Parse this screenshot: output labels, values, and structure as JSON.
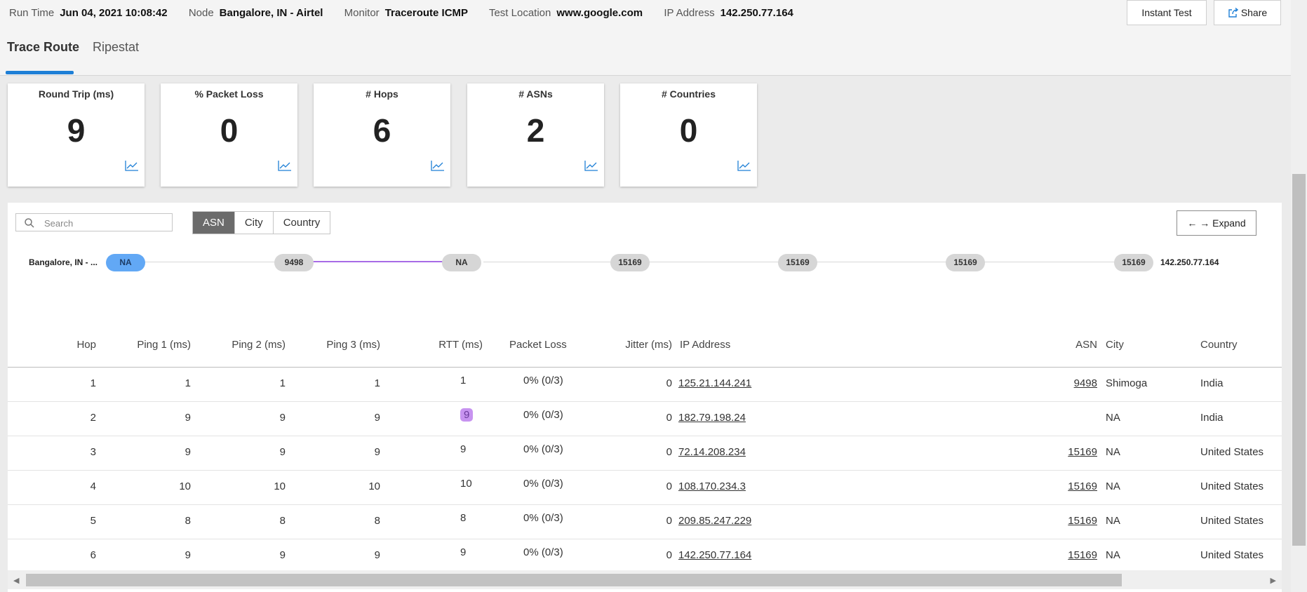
{
  "meta": {
    "run_time_label": "Run Time",
    "run_time": "Jun 04, 2021 10:08:42",
    "node_label": "Node",
    "node": "Bangalore, IN - Airtel",
    "monitor_label": "Monitor",
    "monitor": "Traceroute ICMP",
    "location_label": "Test Location",
    "location": "www.google.com",
    "ip_label": "IP Address",
    "ip": "142.250.77.164"
  },
  "buttons": {
    "instant_test": "Instant Test",
    "share": "Share",
    "expand": "← → Expand"
  },
  "tabs": [
    {
      "label": "Trace Route",
      "active": true
    },
    {
      "label": "Ripestat",
      "active": false
    }
  ],
  "cards": [
    {
      "title": "Round Trip (ms)",
      "value": "9"
    },
    {
      "title": "% Packet Loss",
      "value": "0"
    },
    {
      "title": "# Hops",
      "value": "6"
    },
    {
      "title": "# ASNs",
      "value": "2"
    },
    {
      "title": "# Countries",
      "value": "0"
    }
  ],
  "search": {
    "placeholder": "Search",
    "value": ""
  },
  "segments": [
    {
      "label": "ASN",
      "active": true
    },
    {
      "label": "City"
    },
    {
      "label": "Country"
    }
  ],
  "path": {
    "source": "Bangalore, IN - ...",
    "destination": "142.250.77.164",
    "nodes": [
      "NA",
      "9498",
      "NA",
      "15169",
      "15169",
      "15169",
      "15169"
    ]
  },
  "table": {
    "headers": [
      "Hop",
      "Ping 1 (ms)",
      "Ping 2 (ms)",
      "Ping 3 (ms)",
      "RTT (ms)",
      "Packet Loss",
      "Jitter (ms)",
      "IP Address",
      "ASN",
      "City",
      "Country"
    ],
    "rows": [
      {
        "hop": "1",
        "p1": "1",
        "p2": "1",
        "p3": "1",
        "rtt": "1",
        "loss": "0% (0/3)",
        "jitter": "0",
        "ip": "125.21.144.241",
        "asn": "9498",
        "city": "Shimoga",
        "country": "India"
      },
      {
        "hop": "2",
        "p1": "9",
        "p2": "9",
        "p3": "9",
        "rtt": "9",
        "loss": "0% (0/3)",
        "jitter": "0",
        "ip": "182.79.198.24",
        "asn": "",
        "city": "NA",
        "country": "India"
      },
      {
        "hop": "3",
        "p1": "9",
        "p2": "9",
        "p3": "9",
        "rtt": "9",
        "loss": "0% (0/3)",
        "jitter": "0",
        "ip": "72.14.208.234",
        "asn": "15169",
        "city": "NA",
        "country": "United States"
      },
      {
        "hop": "4",
        "p1": "10",
        "p2": "10",
        "p3": "10",
        "rtt": "10",
        "loss": "0% (0/3)",
        "jitter": "0",
        "ip": "108.170.234.3",
        "asn": "15169",
        "city": "NA",
        "country": "United States"
      },
      {
        "hop": "5",
        "p1": "8",
        "p2": "8",
        "p3": "8",
        "rtt": "8",
        "loss": "0% (0/3)",
        "jitter": "0",
        "ip": "209.85.247.229",
        "asn": "15169",
        "city": "NA",
        "country": "United States"
      },
      {
        "hop": "6",
        "p1": "9",
        "p2": "9",
        "p3": "9",
        "rtt": "9",
        "loss": "0% (0/3)",
        "jitter": "0",
        "ip": "142.250.77.164",
        "asn": "15169",
        "city": "NA",
        "country": "United States"
      }
    ]
  },
  "colors": {
    "accent": "#1e7fd6",
    "highlight": "#a86be6",
    "node_source": "#62a8f5"
  }
}
